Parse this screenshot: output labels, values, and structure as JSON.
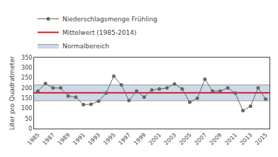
{
  "chart_data": {
    "type": "line",
    "x": [
      1985,
      1986,
      1987,
      1988,
      1989,
      1990,
      1991,
      1992,
      1993,
      1994,
      1995,
      1996,
      1997,
      1998,
      1999,
      2000,
      2001,
      2002,
      2003,
      2004,
      2005,
      2006,
      2007,
      2008,
      2009,
      2010,
      2011,
      2012,
      2013,
      2014,
      2015
    ],
    "series": [
      {
        "name": "Niederschlagsmenge Frühling",
        "color": "#666666",
        "marker": "circle",
        "values": [
          185,
          222,
          200,
          200,
          160,
          155,
          118,
          120,
          135,
          175,
          258,
          215,
          138,
          185,
          155,
          190,
          195,
          200,
          220,
          195,
          130,
          150,
          243,
          185,
          185,
          200,
          175,
          88,
          110,
          200,
          145
        ]
      }
    ],
    "mean": {
      "name": "Mittelwert (1985-2014)",
      "color": "#dd0000",
      "value": 176
    },
    "normal_band": {
      "name": "Normalbereich",
      "color": "#ccd9e8",
      "low": 137,
      "high": 215
    },
    "y_label": "Liter pro Quadratmeter",
    "xlim": [
      1984.5,
      2015.5
    ],
    "xticks": [
      1985,
      1987,
      1989,
      1991,
      1993,
      1995,
      1997,
      1999,
      2001,
      2003,
      2005,
      2007,
      2009,
      2011,
      2013,
      2015
    ],
    "ylim": [
      0,
      350
    ],
    "yticks": [
      0,
      50,
      100,
      150,
      200,
      250,
      300,
      350
    ],
    "grid": false,
    "legend": "upper left"
  }
}
